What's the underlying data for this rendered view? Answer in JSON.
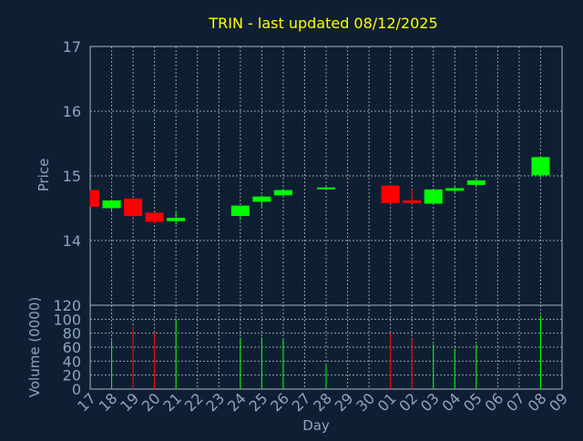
{
  "title": "TRIN - last updated 08/12/2025",
  "colors": {
    "background": "#0f1f33",
    "grid": "#a9b4c2",
    "axis_text": "#8fa3be",
    "title": "#ffff00",
    "up": "#00ff00",
    "down": "#ff0000"
  },
  "chart_data": [
    {
      "type": "candlestick",
      "ylabel": "Price",
      "ylim": [
        13.0,
        17.0
      ],
      "yticks": [
        14,
        15,
        16,
        17
      ],
      "x_tick_labels": [
        "17",
        "18",
        "19",
        "20",
        "21",
        "22",
        "23",
        "24",
        "25",
        "26",
        "27",
        "28",
        "29",
        "30",
        "01",
        "02",
        "03",
        "04",
        "05",
        "06",
        "07",
        "08",
        "09"
      ],
      "grid": true,
      "candles": [
        {
          "x": 0.0,
          "open": 14.78,
          "close": 14.52,
          "high": 14.78,
          "low": 14.52
        },
        {
          "x": 1.0,
          "open": 14.5,
          "close": 14.62,
          "high": 14.62,
          "low": 14.45
        },
        {
          "x": 2.0,
          "open": 14.65,
          "close": 14.38,
          "high": 14.65,
          "low": 14.33
        },
        {
          "x": 3.0,
          "open": 14.43,
          "close": 14.29,
          "high": 14.43,
          "low": 14.26
        },
        {
          "x": 4.0,
          "open": 14.3,
          "close": 14.35,
          "high": 14.45,
          "low": 14.25
        },
        {
          "x": 7.0,
          "open": 14.38,
          "close": 14.54,
          "high": 14.54,
          "low": 14.32
        },
        {
          "x": 8.0,
          "open": 14.6,
          "close": 14.68,
          "high": 14.7,
          "low": 14.52
        },
        {
          "x": 9.0,
          "open": 14.7,
          "close": 14.78,
          "high": 14.79,
          "low": 14.68
        },
        {
          "x": 11.0,
          "open": 14.8,
          "close": 14.82,
          "high": 14.84,
          "low": 14.78
        },
        {
          "x": 14.0,
          "open": 14.85,
          "close": 14.58,
          "high": 14.85,
          "low": 14.56
        },
        {
          "x": 15.0,
          "open": 14.62,
          "close": 14.58,
          "high": 14.8,
          "low": 14.55
        },
        {
          "x": 16.0,
          "open": 14.57,
          "close": 14.79,
          "high": 14.79,
          "low": 14.57
        },
        {
          "x": 17.0,
          "open": 14.77,
          "close": 14.81,
          "high": 14.83,
          "low": 14.74
        },
        {
          "x": 18.0,
          "open": 14.86,
          "close": 14.93,
          "high": 14.95,
          "low": 14.82
        },
        {
          "x": 21.0,
          "open": 15.01,
          "close": 15.29,
          "high": 15.29,
          "low": 14.98
        }
      ]
    },
    {
      "type": "bar",
      "ylabel": "Volume (0000)",
      "xlabel": "Day",
      "ylim": [
        0,
        120
      ],
      "yticks": [
        0,
        20,
        40,
        60,
        80,
        100,
        120
      ],
      "x_tick_labels": [
        "17",
        "18",
        "19",
        "20",
        "21",
        "22",
        "23",
        "24",
        "25",
        "26",
        "27",
        "28",
        "29",
        "30",
        "01",
        "02",
        "03",
        "04",
        "05",
        "06",
        "07",
        "08",
        "09"
      ],
      "grid": true,
      "bars": [
        {
          "x": 1.0,
          "value": 70,
          "direction": "up"
        },
        {
          "x": 2.0,
          "value": 88,
          "direction": "down"
        },
        {
          "x": 3.0,
          "value": 80,
          "direction": "down"
        },
        {
          "x": 4.0,
          "value": 100,
          "direction": "up"
        },
        {
          "x": 7.0,
          "value": 74,
          "direction": "up"
        },
        {
          "x": 8.0,
          "value": 74,
          "direction": "up"
        },
        {
          "x": 9.0,
          "value": 72,
          "direction": "up"
        },
        {
          "x": 11.0,
          "value": 35,
          "direction": "up"
        },
        {
          "x": 14.0,
          "value": 80,
          "direction": "down"
        },
        {
          "x": 15.0,
          "value": 72,
          "direction": "down"
        },
        {
          "x": 16.0,
          "value": 64,
          "direction": "up"
        },
        {
          "x": 17.0,
          "value": 58,
          "direction": "up"
        },
        {
          "x": 18.0,
          "value": 64,
          "direction": "up"
        },
        {
          "x": 21.0,
          "value": 105,
          "direction": "up"
        }
      ]
    }
  ]
}
